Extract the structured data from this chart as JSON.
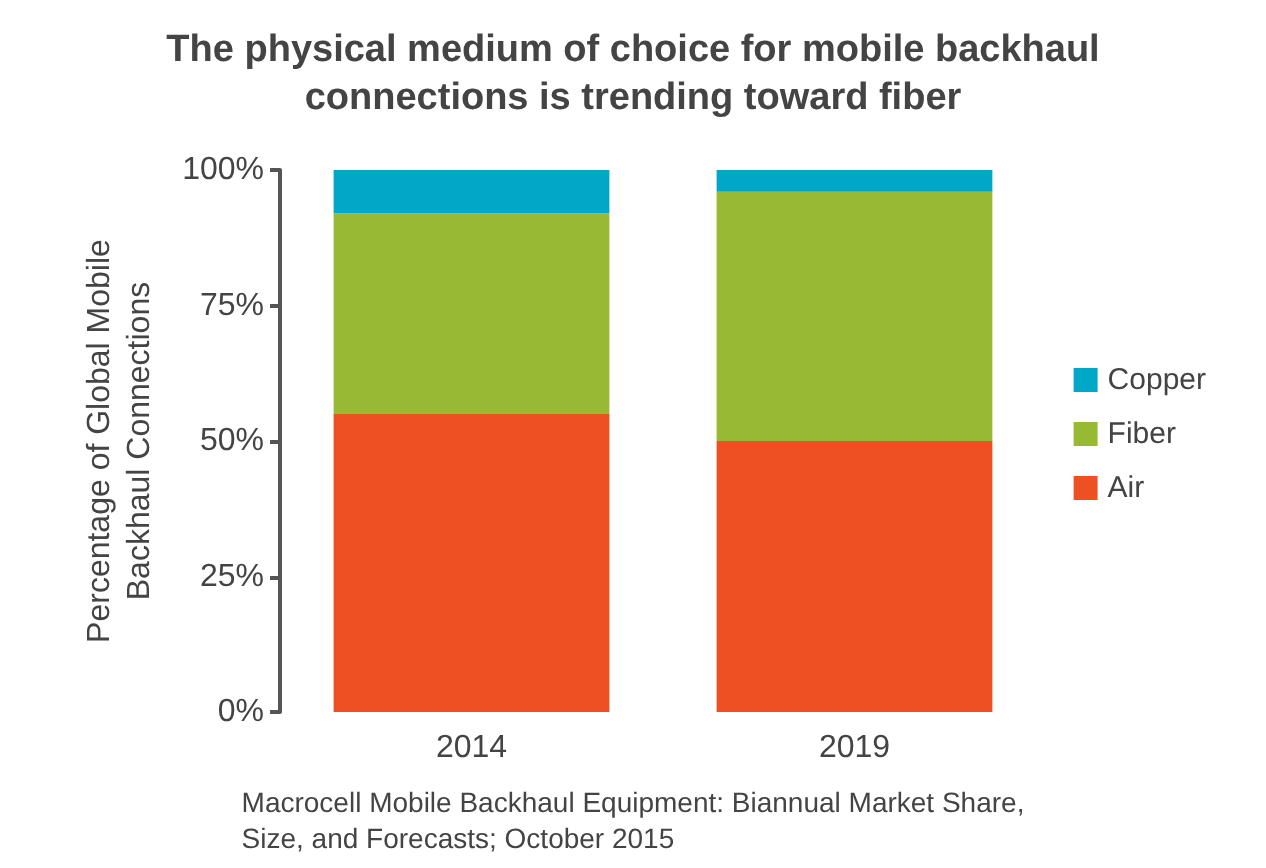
{
  "chart_data": {
    "type": "bar",
    "stacked": true,
    "title": "The physical medium of choice for mobile backhaul connections is trending toward fiber",
    "ylabel": "Percentage of Global Mobile Backhaul Connections",
    "categories": [
      "2014",
      "2019"
    ],
    "series": [
      {
        "name": "Air",
        "color": "#ef5023",
        "values": [
          55,
          50
        ]
      },
      {
        "name": "Fiber",
        "color": "#98b933",
        "values": [
          37,
          46
        ]
      },
      {
        "name": "Copper",
        "color": "#00a7c6",
        "values": [
          8,
          4
        ]
      }
    ],
    "ylim": [
      0,
      100
    ],
    "yticks": [
      {
        "value": 0,
        "label": "0%"
      },
      {
        "value": 25,
        "label": "25%"
      },
      {
        "value": 50,
        "label": "50%"
      },
      {
        "value": 75,
        "label": "75%"
      },
      {
        "value": 100,
        "label": "100%"
      }
    ],
    "grid": false,
    "legend": "right",
    "annotations": [
      "Macrocell Mobile Backhaul Equipment: Biannual Market Share, Size, and Forecasts; October 2015"
    ]
  }
}
